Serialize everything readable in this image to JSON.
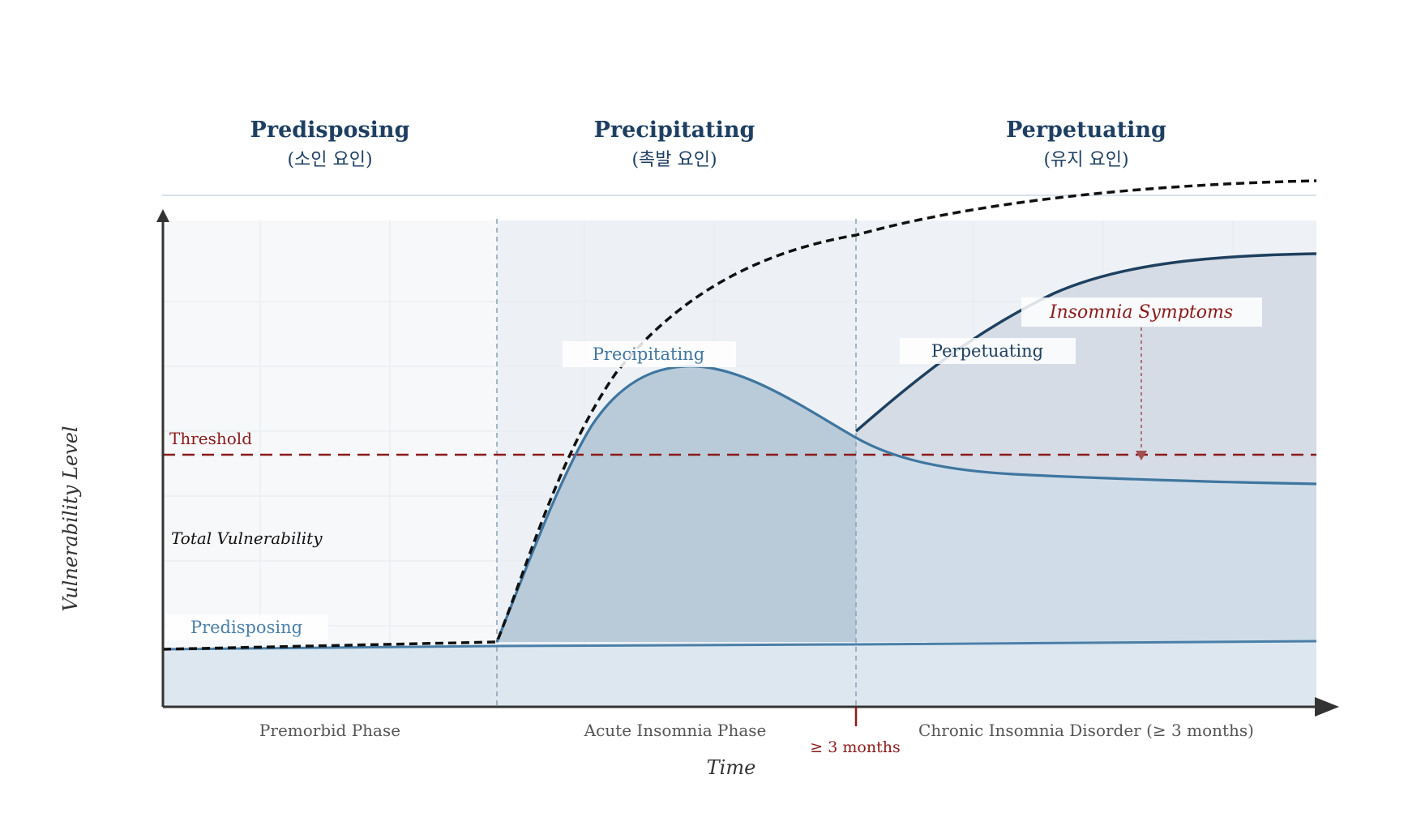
{
  "headers": [
    {
      "title": "Predisposing",
      "subtitle": "(소인 요인)"
    },
    {
      "title": "Precipitating",
      "subtitle": "(촉발 요인)"
    },
    {
      "title": "Perpetuating",
      "subtitle": "(유지 요인)"
    }
  ],
  "axes": {
    "ylabel": "Vulnerability Level",
    "xlabel": "Time"
  },
  "phases": [
    "Premorbid Phase",
    "Acute Insomnia Phase",
    "Chronic Insomnia Disorder (≥ 3 months)"
  ],
  "threshold": {
    "label": "Threshold"
  },
  "marker": {
    "label": "≥ 3 months"
  },
  "curve_labels": {
    "predisposing": "Predisposing",
    "precipitating": "Precipitating",
    "perpetuating": "Perpetuating",
    "total": "Total Vulnerability",
    "symptoms": "Insomnia Symptoms"
  },
  "colors": {
    "header": "#1e3f62",
    "predisposing": "#4a7fa8",
    "precipitating": "#3f76a0",
    "perpetuating": "#1f405f",
    "threshold": "#8b1a1a",
    "total": "#111111"
  }
}
